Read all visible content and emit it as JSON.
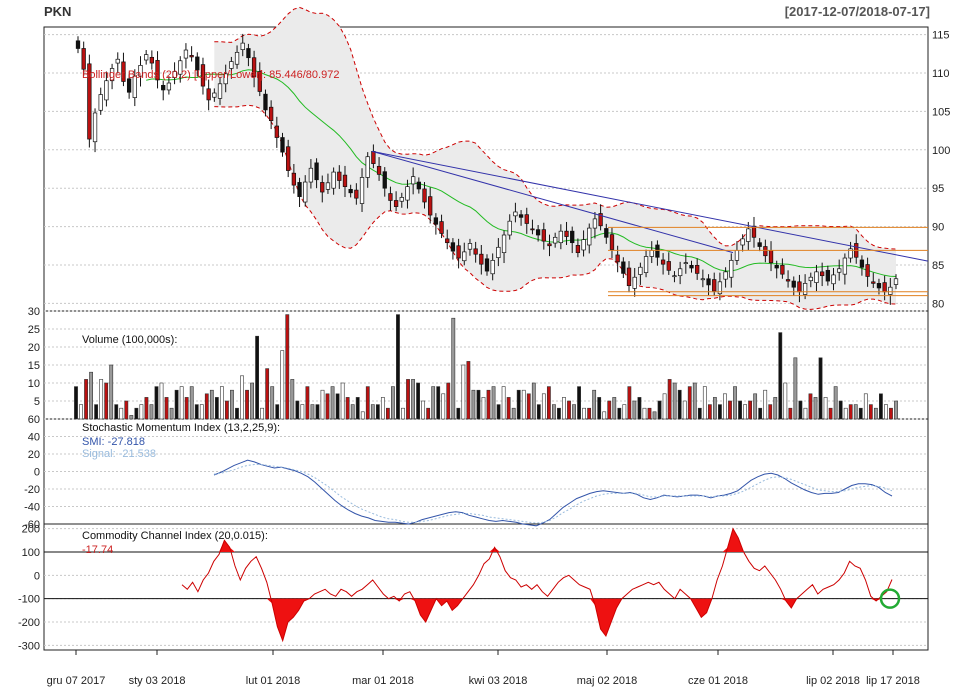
{
  "chart_data": [
    {
      "type": "candlestick",
      "title": "PKN",
      "date_range": "[2017-12-07/2018-07-17]",
      "ylim": [
        79,
        116
      ],
      "y_ticks": [
        80,
        85,
        90,
        95,
        100,
        105,
        110,
        115
      ],
      "overlay_label": "Bollinger Bands (20,2) [Upper/Lower]: 85.446/80.972",
      "moving_average_color": "#22bb22",
      "band_color": "#cc0000",
      "up_color": "#ffffff",
      "down_color": "#bb1111",
      "trendline_color": "#3333aa",
      "level_color": "#e08020",
      "close_series": [
        113.2,
        110.5,
        101.4,
        104.8,
        107.2,
        109.0,
        110.6,
        111.8,
        108.9,
        107.5,
        109.6,
        111.0,
        112.4,
        111.3,
        109.1,
        107.8,
        108.7,
        110.2,
        111.6,
        113.0,
        112.1,
        110.4,
        108.3,
        106.5,
        107.4,
        108.6,
        109.9,
        111.5,
        112.7,
        113.9,
        112.0,
        109.5,
        107.6,
        105.2,
        103.8,
        101.6,
        99.7,
        97.3,
        95.4,
        93.9,
        95.8,
        97.6,
        96.1,
        94.5,
        95.7,
        97.1,
        96.0,
        95.2,
        94.4,
        93.7,
        96.4,
        99.1,
        98.2,
        96.8,
        95.0,
        93.4,
        92.6,
        93.8,
        95.2,
        96.5,
        94.9,
        93.2,
        91.5,
        90.3,
        89.1,
        87.9,
        86.8,
        85.9,
        86.7,
        87.8,
        86.4,
        85.1,
        84.2,
        85.6,
        87.3,
        88.9,
        90.7,
        91.9,
        91.2,
        90.4,
        89.6,
        88.9,
        88.1,
        87.5,
        88.6,
        89.4,
        88.7,
        87.9,
        86.6,
        88.3,
        89.8,
        91.0,
        90.1,
        88.6,
        87.0,
        85.4,
        83.9,
        82.3,
        83.4,
        84.7,
        86.1,
        86.9,
        86.0,
        85.1,
        84.3,
        83.6,
        84.5,
        85.3,
        84.6,
        83.9,
        83.2,
        82.4,
        81.6,
        82.8,
        84.1,
        85.6,
        86.9,
        88.4,
        89.7,
        88.6,
        87.4,
        86.2,
        85.3,
        84.6,
        83.8,
        82.9,
        82.1,
        81.5,
        82.6,
        83.4,
        84.1,
        83.6,
        82.9,
        83.7,
        84.5,
        85.9,
        87.1,
        86.0,
        84.7,
        83.5,
        82.6,
        82.0,
        81.5,
        82.1,
        83.2
      ]
    },
    {
      "type": "bar",
      "title": "Volume (100,000s):",
      "ylim": [
        0,
        30
      ],
      "y_ticks": [
        5,
        10,
        15,
        20,
        25,
        30
      ],
      "values": [
        9,
        4,
        11,
        13,
        4,
        11,
        10,
        15,
        4,
        3,
        5,
        1,
        3,
        4,
        6,
        4,
        9,
        10,
        6,
        3,
        8,
        9,
        6,
        9,
        4,
        4,
        7,
        8,
        6,
        9,
        5,
        8,
        3,
        12,
        8,
        10,
        23,
        3,
        14,
        9,
        4,
        19,
        29,
        11,
        5,
        4,
        9,
        4,
        4,
        8,
        7,
        9,
        7,
        10,
        6,
        4,
        6,
        2,
        9,
        4,
        4,
        6,
        3,
        9,
        29,
        3,
        11,
        11,
        10,
        5,
        3,
        9,
        9,
        7,
        10,
        28,
        3,
        15,
        16,
        8,
        8,
        6,
        8,
        9,
        4,
        9,
        6,
        3,
        8,
        8,
        7,
        10,
        4,
        7,
        9,
        4,
        3,
        6,
        5,
        4,
        9,
        3,
        3,
        8,
        6,
        2,
        5,
        6,
        3,
        4,
        9,
        5,
        6,
        3,
        3,
        2,
        5,
        7,
        11,
        10,
        8,
        5,
        9,
        10,
        3,
        9,
        4,
        6,
        4,
        7,
        5,
        9,
        5,
        4,
        5,
        7,
        3,
        8,
        4,
        6,
        24,
        10,
        3,
        17,
        5,
        3,
        7,
        6,
        17,
        6,
        3,
        9,
        5,
        3,
        4,
        4,
        3,
        7,
        4,
        3,
        7,
        4,
        3,
        5
      ]
    },
    {
      "type": "line",
      "title": "Stochastic Momentum Index (13,2,25,9):",
      "ylim": [
        -60,
        60
      ],
      "y_ticks": [
        -60,
        -40,
        -20,
        0,
        20,
        40,
        60
      ],
      "smi_label": "SMI: -27.818",
      "signal_label": "Signal: -21.538",
      "smi_color": "#3355aa",
      "signal_color": "#99bbdd",
      "series": [
        {
          "name": "SMI",
          "values": [
            -4,
            -1,
            3,
            7,
            10,
            13,
            11,
            8,
            6,
            4,
            5,
            3,
            1,
            -2,
            -6,
            -12,
            -19,
            -26,
            -33,
            -39,
            -44,
            -48,
            -51,
            -53,
            -56,
            -57,
            -58,
            -58,
            -59,
            -60,
            -58,
            -55,
            -53,
            -51,
            -49,
            -47,
            -46,
            -47,
            -50,
            -52,
            -54,
            -56,
            -57,
            -56,
            -57,
            -58,
            -60,
            -61,
            -62,
            -59,
            -55,
            -48,
            -41,
            -36,
            -31,
            -28,
            -25,
            -23,
            -22,
            -23,
            -24,
            -25,
            -24,
            -26,
            -30,
            -32,
            -30,
            -27,
            -28,
            -29,
            -28,
            -27,
            -27,
            -28,
            -30,
            -28,
            -27,
            -25,
            -22,
            -16,
            -10,
            -6,
            -3,
            -2,
            -4,
            -8,
            -13,
            -17,
            -21,
            -24,
            -26,
            -25,
            -25,
            -24,
            -20,
            -16,
            -14,
            -14,
            -15,
            -18,
            -24,
            -28
          ]
        },
        {
          "name": "Signal",
          "values": [
            -3,
            -2,
            0,
            2,
            5,
            7,
            8,
            8,
            7,
            6,
            5,
            4,
            2,
            0,
            -3,
            -7,
            -12,
            -17,
            -23,
            -29,
            -34,
            -39,
            -43,
            -46,
            -49,
            -52,
            -54,
            -55,
            -57,
            -58,
            -58,
            -57,
            -56,
            -54,
            -52,
            -50,
            -49,
            -48,
            -48,
            -49,
            -50,
            -52,
            -53,
            -54,
            -55,
            -56,
            -57,
            -58,
            -59,
            -58,
            -56,
            -52,
            -47,
            -43,
            -38,
            -34,
            -31,
            -28,
            -26,
            -25,
            -25,
            -25,
            -25,
            -25,
            -27,
            -29,
            -29,
            -28,
            -28,
            -28,
            -28,
            -28,
            -28,
            -28,
            -29,
            -28,
            -28,
            -27,
            -25,
            -22,
            -18,
            -14,
            -10,
            -7,
            -6,
            -7,
            -9,
            -12,
            -15,
            -18,
            -21,
            -22,
            -23,
            -23,
            -22,
            -20,
            -18,
            -17,
            -16,
            -17,
            -19,
            -22
          ]
        }
      ]
    },
    {
      "type": "line",
      "title": "Commodity Channel Index (20,0.015):",
      "value_label": "-17.74",
      "ylim": [
        -320,
        220
      ],
      "y_ticks": [
        -300,
        -200,
        -100,
        0,
        100,
        200
      ],
      "reference_lines": [
        100,
        -100
      ],
      "line_color": "#cc0000",
      "values": [
        -40,
        -60,
        -30,
        -70,
        -20,
        10,
        60,
        90,
        150,
        120,
        40,
        -20,
        30,
        60,
        80,
        30,
        -30,
        -120,
        -220,
        -280,
        -200,
        -180,
        -150,
        -110,
        -100,
        -80,
        -70,
        -60,
        -80,
        -90,
        -60,
        -70,
        -90,
        -70,
        -60,
        -40,
        -20,
        -50,
        -80,
        -100,
        -90,
        -110,
        -80,
        -70,
        -110,
        -170,
        -200,
        -150,
        -100,
        -130,
        -110,
        -150,
        -130,
        -100,
        -70,
        -40,
        0,
        50,
        70,
        120,
        80,
        20,
        -10,
        -20,
        -50,
        -40,
        -60,
        -40,
        -70,
        -90,
        -60,
        -30,
        -10,
        0,
        -20,
        -40,
        -50,
        -60,
        -130,
        -230,
        -260,
        -200,
        -140,
        -100,
        -80,
        -60,
        -50,
        -40,
        -30,
        -40,
        -30,
        -60,
        -80,
        -100,
        -60,
        -80,
        -100,
        -140,
        -180,
        -160,
        -100,
        -20,
        40,
        120,
        200,
        160,
        100,
        60,
        30,
        20,
        40,
        10,
        -20,
        -60,
        -110,
        -140,
        -100,
        -80,
        -60,
        -40,
        -80,
        -60,
        -50,
        -40,
        -20,
        10,
        60,
        40,
        30,
        -20,
        -90,
        -110,
        -90,
        -70,
        -18
      ]
    }
  ],
  "x_axis": {
    "labels": [
      "gru 07 2017",
      "sty 03 2018",
      "lut 01 2018",
      "mar 01 2018",
      "kwi 03 2018",
      "maj 02 2018",
      "cze 01 2018",
      "lip 02 2018",
      "lip 17 2018"
    ]
  }
}
